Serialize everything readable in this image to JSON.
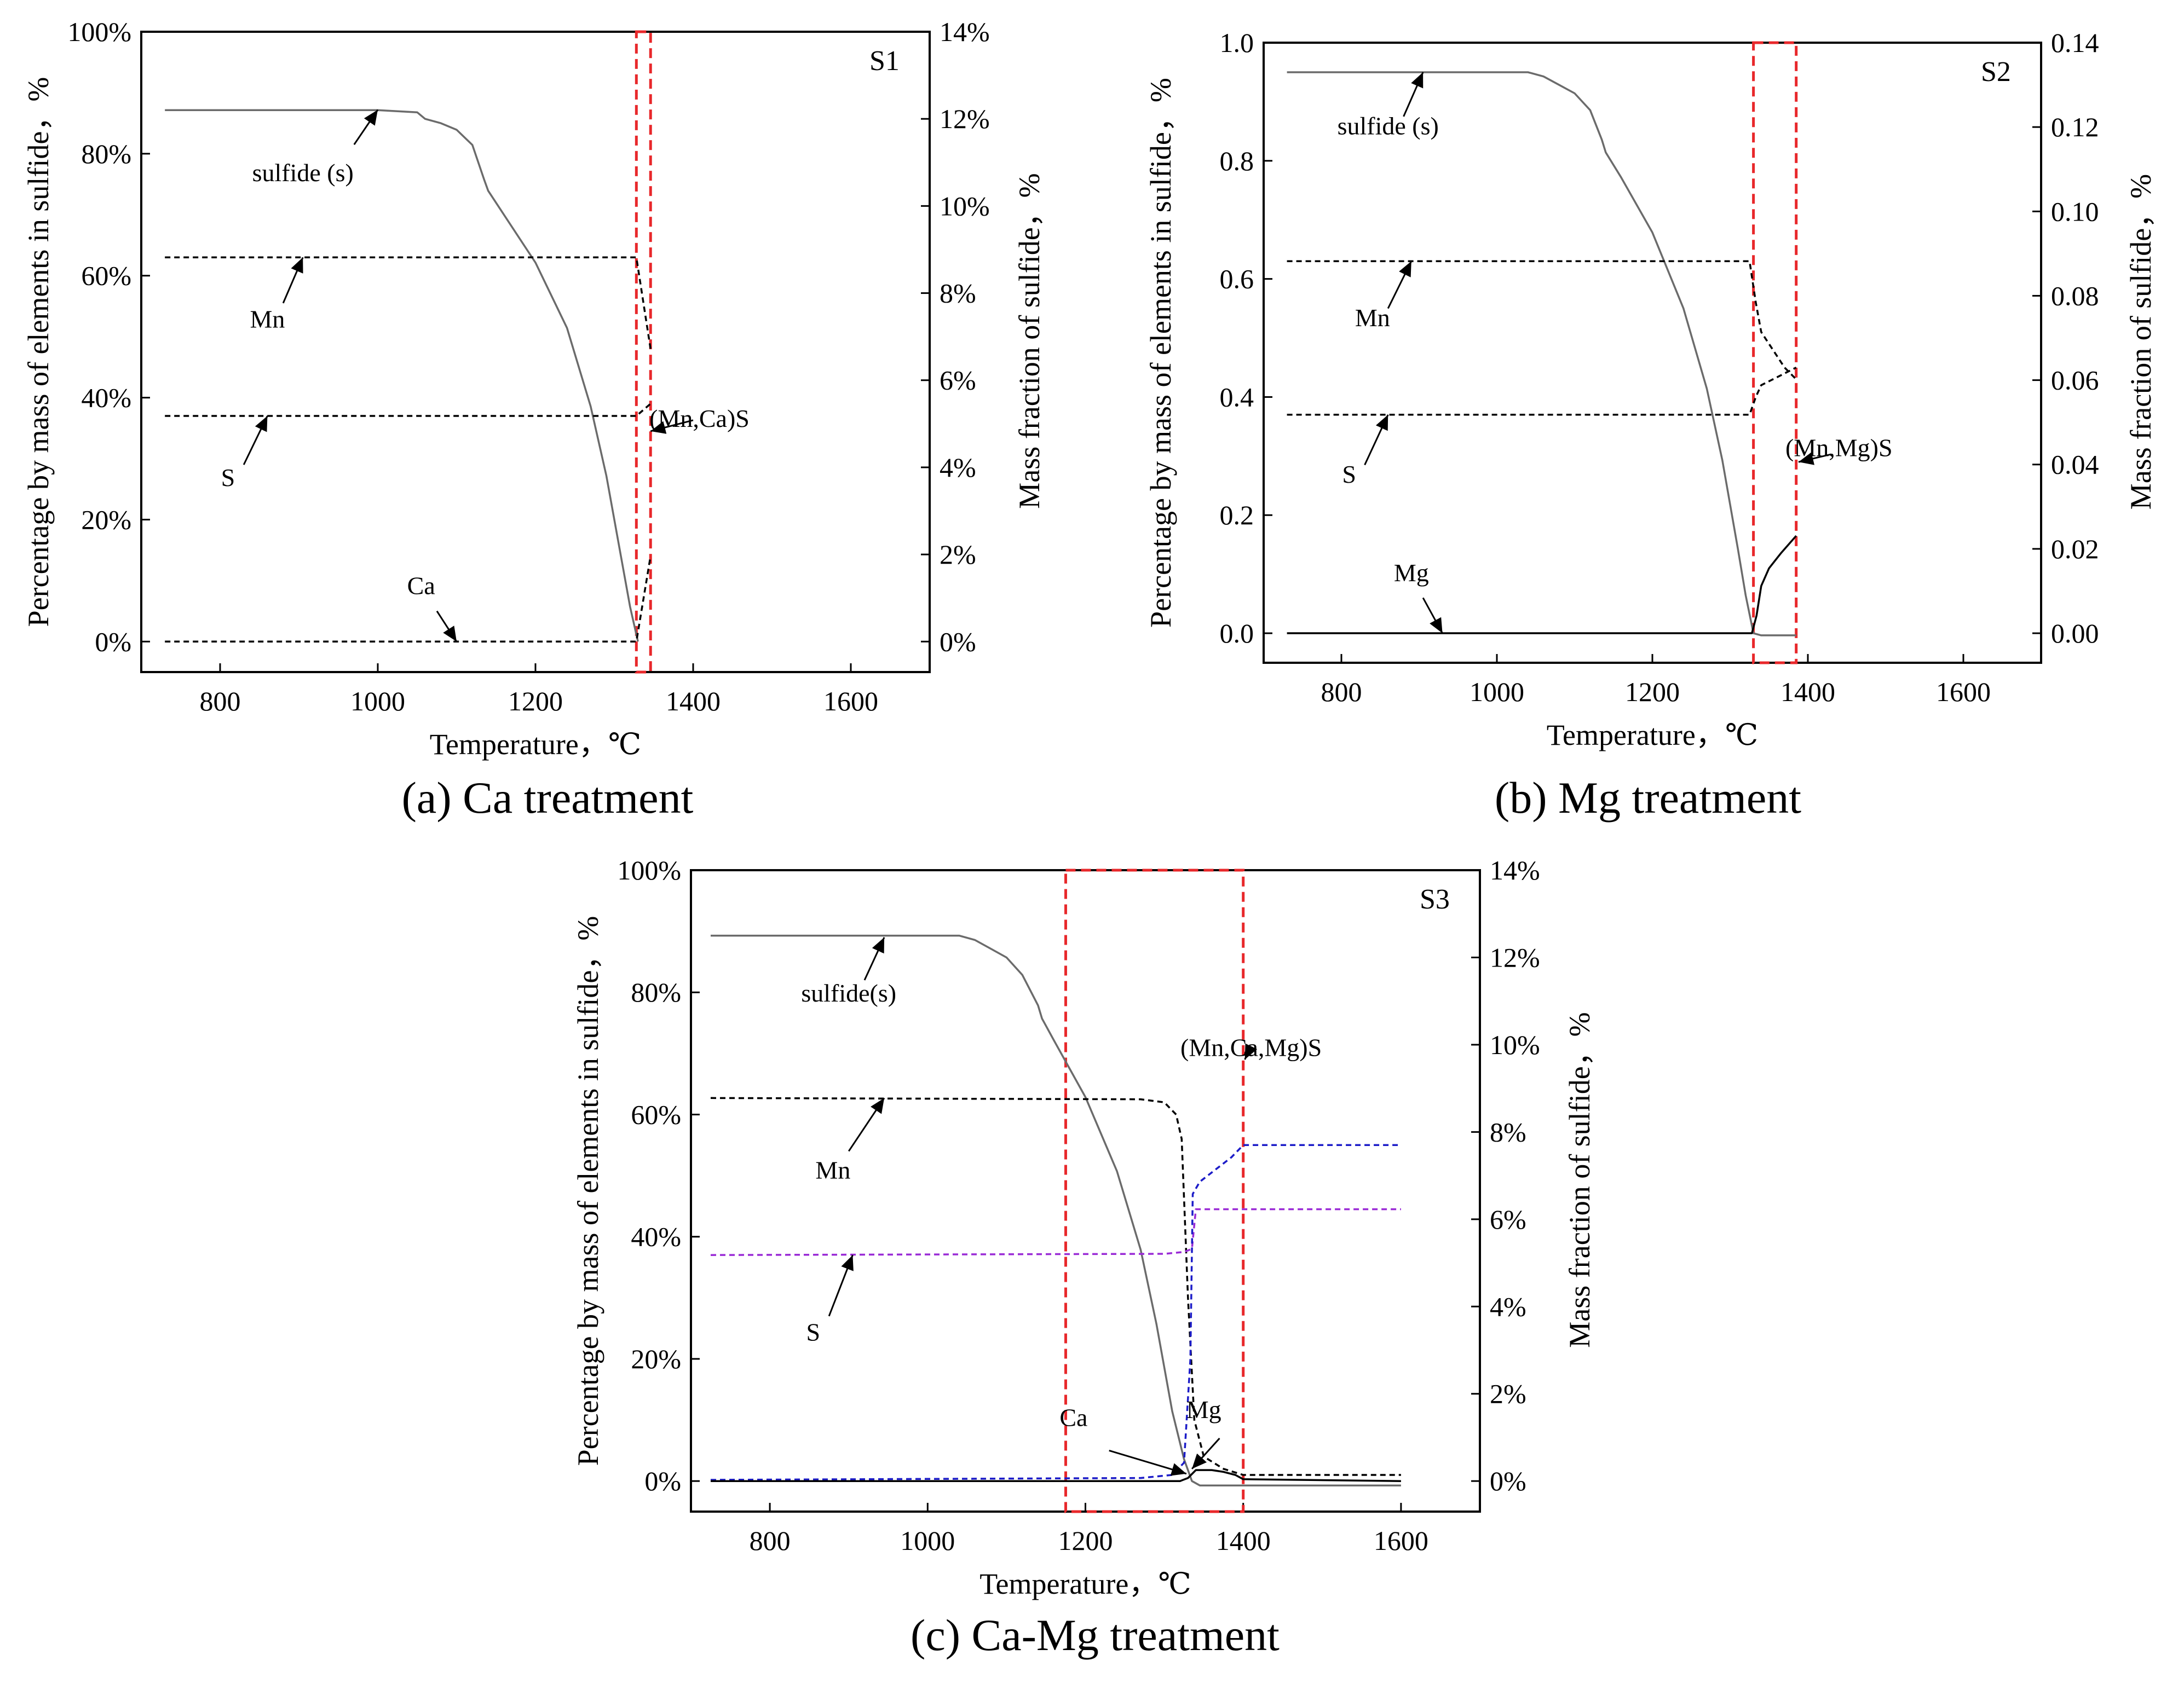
{
  "chart_data": [
    {
      "id": "a",
      "type": "line",
      "panel_tag": "S1",
      "caption_letter": "(a)",
      "caption_text": " Ca treatment",
      "xlabel": "Temperature，℃",
      "ylabel_left": "Percentage by mass of elements in sulfide，%",
      "ylabel_right": "Mass fraction of sulfide，%",
      "xlim": [
        700,
        1700
      ],
      "ylim_left": [
        -5,
        100
      ],
      "ylim_right": [
        -0.7,
        14
      ],
      "xticks": [
        800,
        1000,
        1200,
        1400,
        1600
      ],
      "yticks_left": [
        0,
        20,
        40,
        60,
        80,
        100
      ],
      "yticks_left_labels": [
        "0%",
        "20%",
        "40%",
        "60%",
        "80%",
        "100%"
      ],
      "yticks_right": [
        0,
        2,
        4,
        6,
        8,
        10,
        12,
        14
      ],
      "yticks_right_labels": [
        "0%",
        "2%",
        "4%",
        "6%",
        "8%",
        "10%",
        "12%",
        "14%"
      ],
      "highlight_x": [
        1328,
        1346
      ],
      "series": [
        {
          "name": "sulfide (s)",
          "axis": "right",
          "color": "#6b6b6b",
          "dash": "",
          "x": [
            730,
            1000,
            1050,
            1060,
            1080,
            1100,
            1120,
            1135,
            1140,
            1160,
            1200,
            1240,
            1270,
            1290,
            1310,
            1320,
            1330
          ],
          "y": [
            12.2,
            12.2,
            12.15,
            12.0,
            11.9,
            11.75,
            11.4,
            10.6,
            10.35,
            9.8,
            8.7,
            7.2,
            5.4,
            3.8,
            1.8,
            0.8,
            0.0
          ]
        },
        {
          "name": "Mn",
          "axis": "left",
          "color": "#000000",
          "dash": "10,7",
          "x": [
            730,
            1328,
            1346
          ],
          "y": [
            63,
            63,
            48
          ]
        },
        {
          "name": "S",
          "axis": "left",
          "color": "#000000",
          "dash": "10,7",
          "x": [
            730,
            1328,
            1346
          ],
          "y": [
            37,
            37,
            39
          ]
        },
        {
          "name": "Ca",
          "axis": "left",
          "color": "#000000",
          "dash": "10,7",
          "x": [
            730,
            1328,
            1346
          ],
          "y": [
            0,
            0,
            14
          ]
        }
      ],
      "annotations": [
        {
          "text": "sulfide (s)",
          "tx": 905,
          "ty": 75.5,
          "ax": 970,
          "ay": 81.5,
          "hx": 1000,
          "hy": 87.2
        },
        {
          "text": "Mn",
          "tx": 860,
          "ty": 51.5,
          "ax": 880,
          "ay": 55.5,
          "hx": 905,
          "hy": 63
        },
        {
          "text": "S",
          "tx": 810,
          "ty": 25.5,
          "ax": 830,
          "ay": 29,
          "hx": 860,
          "hy": 37
        },
        {
          "text": "Ca",
          "tx": 1055,
          "ty": 7.8,
          "ax": 1075,
          "ay": 5,
          "hx": 1100,
          "hy": 0
        },
        {
          "text": "(Mn,Ca)S",
          "tx": 1408,
          "ty": 35.2,
          "ax": 1400,
          "ay": 36.3,
          "hx": 1346,
          "hy": 34.5
        }
      ]
    },
    {
      "id": "b",
      "type": "line",
      "panel_tag": "S2",
      "caption_letter": "(b)",
      "caption_text": " Mg treatment",
      "xlabel": "Temperature，℃",
      "ylabel_left": "Percentage by mass  of elements in sulfide，%",
      "ylabel_right": "Mass fraction of sulfide，%",
      "xlim": [
        700,
        1700
      ],
      "ylim_left": [
        -0.05,
        1.0
      ],
      "ylim_right": [
        -0.007,
        0.14
      ],
      "xticks": [
        800,
        1000,
        1200,
        1400,
        1600
      ],
      "yticks_left": [
        0,
        0.2,
        0.4,
        0.6,
        0.8,
        1.0
      ],
      "yticks_left_labels": [
        "0.0",
        "0.2",
        "0.4",
        "0.6",
        "0.8",
        "1.0"
      ],
      "yticks_right": [
        0,
        0.02,
        0.04,
        0.06,
        0.08,
        0.1,
        0.12,
        0.14
      ],
      "yticks_right_labels": [
        "0.00",
        "0.02",
        "0.04",
        "0.06",
        "0.08",
        "0.10",
        "0.12",
        "0.14"
      ],
      "highlight_x": [
        1330,
        1385
      ],
      "series": [
        {
          "name": "sulfide (s)",
          "axis": "right",
          "color": "#6b6b6b",
          "dash": "",
          "x": [
            730,
            1040,
            1060,
            1080,
            1100,
            1120,
            1135,
            1140,
            1160,
            1200,
            1240,
            1270,
            1290,
            1310,
            1320,
            1330,
            1340,
            1385
          ],
          "y": [
            0.133,
            0.133,
            0.132,
            0.13,
            0.128,
            0.124,
            0.117,
            0.114,
            0.108,
            0.095,
            0.077,
            0.058,
            0.041,
            0.02,
            0.009,
            0.0,
            -0.0005,
            -0.0005
          ]
        },
        {
          "name": "Mn",
          "axis": "left",
          "color": "#000000",
          "dash": "10,7",
          "x": [
            730,
            1325,
            1333,
            1340,
            1355,
            1370,
            1385
          ],
          "y": [
            0.63,
            0.63,
            0.56,
            0.51,
            0.48,
            0.45,
            0.43
          ]
        },
        {
          "name": "S",
          "axis": "left",
          "color": "#000000",
          "dash": "10,7",
          "x": [
            730,
            1325,
            1333,
            1340,
            1355,
            1370,
            1385
          ],
          "y": [
            0.37,
            0.37,
            0.4,
            0.42,
            0.43,
            0.44,
            0.45
          ]
        },
        {
          "name": "Mg",
          "axis": "left",
          "color": "#000000",
          "dash": "",
          "x": [
            730,
            1328,
            1334,
            1340,
            1350,
            1365,
            1385
          ],
          "y": [
            0.0,
            0.0,
            0.03,
            0.08,
            0.11,
            0.135,
            0.165
          ]
        }
      ],
      "annotations": [
        {
          "text": "sulfide (s)",
          "tx": 860,
          "ty": 0.845,
          "ax": 880,
          "ay": 0.875,
          "hx": 905,
          "hy": 0.95
        },
        {
          "text": "Mn",
          "tx": 840,
          "ty": 0.52,
          "ax": 860,
          "ay": 0.55,
          "hx": 890,
          "hy": 0.63
        },
        {
          "text": "S",
          "tx": 810,
          "ty": 0.255,
          "ax": 830,
          "ay": 0.285,
          "hx": 860,
          "hy": 0.37
        },
        {
          "text": "Mg",
          "tx": 890,
          "ty": 0.088,
          "ax": 905,
          "ay": 0.06,
          "hx": 930,
          "hy": 0.0
        },
        {
          "text": "(Mn,Mg)S",
          "tx": 1440,
          "ty": 0.3,
          "ax": 1430,
          "ay": 0.303,
          "hx": 1388,
          "hy": 0.29
        }
      ]
    },
    {
      "id": "c",
      "type": "line",
      "panel_tag": "S3",
      "caption_letter": "(c)",
      "caption_text": " Ca-Mg treatment",
      "xlabel": "Temperature，℃",
      "ylabel_left": "Percentage by mass of elements in sulfide，%",
      "ylabel_right": "Mass fraction of sulfide，%",
      "xlim": [
        700,
        1700
      ],
      "ylim_left": [
        -5,
        100
      ],
      "ylim_right": [
        -0.7,
        14
      ],
      "xticks": [
        800,
        1000,
        1200,
        1400,
        1600
      ],
      "yticks_left": [
        0,
        20,
        40,
        60,
        80,
        100
      ],
      "yticks_left_labels": [
        "0%",
        "20%",
        "40%",
        "60%",
        "80%",
        "100%"
      ],
      "yticks_right": [
        0,
        2,
        4,
        6,
        8,
        10,
        12,
        14
      ],
      "yticks_right_labels": [
        "0%",
        "2%",
        "4%",
        "6%",
        "8%",
        "10%",
        "12%",
        "14%"
      ],
      "highlight_x": [
        1175,
        1400
      ],
      "series": [
        {
          "name": "sulfide(s)",
          "axis": "right",
          "color": "#6b6b6b",
          "dash": "",
          "x": [
            725,
            1040,
            1060,
            1080,
            1100,
            1120,
            1140,
            1145,
            1160,
            1200,
            1240,
            1270,
            1290,
            1310,
            1325,
            1335,
            1345,
            1600
          ],
          "y": [
            12.5,
            12.5,
            12.4,
            12.2,
            12.0,
            11.6,
            10.9,
            10.6,
            10.1,
            8.8,
            7.1,
            5.3,
            3.6,
            1.6,
            0.5,
            0.0,
            -0.1,
            -0.1
          ]
        },
        {
          "name": "Mn",
          "axis": "left",
          "color": "#000000",
          "dash": "10,7",
          "x": [
            725,
            1270,
            1300,
            1315,
            1322,
            1330,
            1338,
            1350,
            1375,
            1400,
            1600
          ],
          "y": [
            62.7,
            62.5,
            62,
            60,
            56,
            30,
            10,
            4,
            2,
            1,
            1
          ]
        },
        {
          "name": "S",
          "axis": "left",
          "color": "#9a2bd6",
          "dash": "10,7",
          "x": [
            725,
            1300,
            1325,
            1335,
            1340,
            1600
          ],
          "y": [
            37,
            37.2,
            37.5,
            38,
            44.5,
            44.5
          ]
        },
        {
          "name": "Mg",
          "axis": "left",
          "color": "#1c1cc8",
          "dash": "10,7",
          "x": [
            725,
            1270,
            1310,
            1325,
            1333,
            1336,
            1345,
            1365,
            1385,
            1400,
            1600
          ],
          "y": [
            0.2,
            0.5,
            1,
            3,
            20,
            47,
            49,
            51,
            53,
            55,
            55
          ]
        },
        {
          "name": "Ca",
          "axis": "left",
          "color": "#000000",
          "dash": "",
          "x": [
            725,
            1320,
            1330,
            1340,
            1360,
            1375,
            1390,
            1400,
            1600
          ],
          "y": [
            0,
            0,
            0.5,
            1.8,
            1.8,
            1.5,
            1.0,
            0.3,
            0
          ]
        }
      ],
      "annotations": [
        {
          "text": "sulfide(s)",
          "tx": 900,
          "ty": 78.5,
          "ax": 920,
          "ay": 82,
          "hx": 945,
          "hy": 89
        },
        {
          "text": "Mn",
          "tx": 880,
          "ty": 49.5,
          "ax": 900,
          "ay": 54,
          "hx": 945,
          "hy": 62.7
        },
        {
          "text": "S",
          "tx": 855,
          "ty": 23,
          "ax": 875,
          "ay": 27,
          "hx": 905,
          "hy": 37
        },
        {
          "text": "Ca",
          "tx": 1185,
          "ty": 9,
          "ax": 1230,
          "ay": 5,
          "hx": 1328,
          "hy": 1.2
        },
        {
          "text": "Mg",
          "tx": 1350,
          "ty": 10.3,
          "ax": 1370,
          "ay": 7,
          "hx": 1335,
          "hy": 2
        },
        {
          "text": "(Mn,Ca,Mg)S",
          "tx": 1410,
          "ty": 69.6,
          "ax": 1408,
          "ay": 70.6,
          "hx": 1402,
          "hy": 69
        }
      ]
    }
  ]
}
